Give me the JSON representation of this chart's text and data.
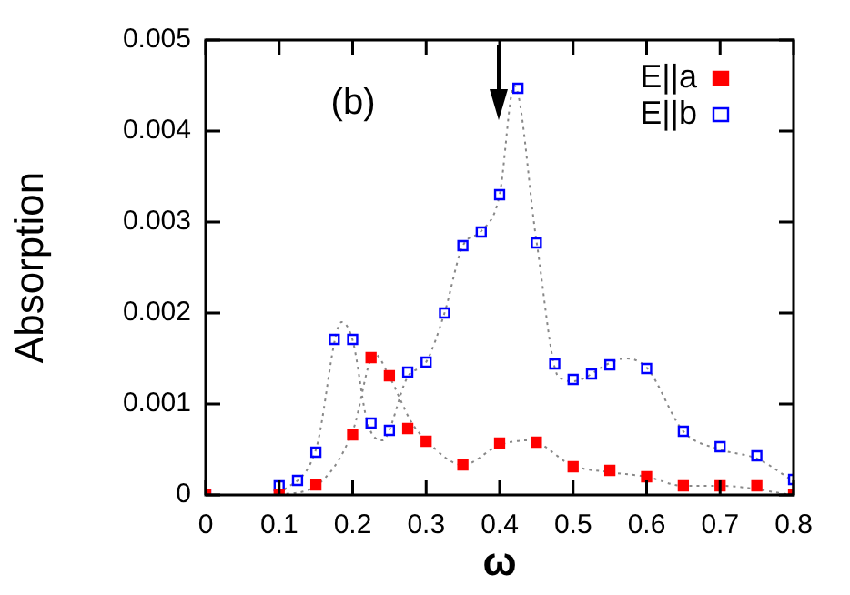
{
  "chart_data": {
    "type": "scatter",
    "xlabel": "ω",
    "ylabel": "Absorption",
    "annotations": [
      "(b)"
    ],
    "xlim": [
      0,
      0.8
    ],
    "xticks": [
      0,
      0.1,
      0.2,
      0.3,
      0.4,
      0.5,
      0.6,
      0.7,
      0.8
    ],
    "ylim": [
      0,
      0.005
    ],
    "yticks": [
      0,
      0.001,
      0.002,
      0.003,
      0.004,
      0.005
    ],
    "grid": false,
    "legend": "top right",
    "marker": "square",
    "series": [
      {
        "name": "E||a",
        "color": "#ff0000",
        "x": [
          0,
          0.1,
          0.15,
          0.2,
          0.225,
          0.25,
          0.275,
          0.3,
          0.35,
          0.4,
          0.45,
          0.5,
          0.55,
          0.6,
          0.65,
          0.7,
          0.75,
          0.8
        ],
        "values": [
          0,
          0,
          0.00011,
          0.00066,
          0.00151,
          0.00131,
          0.00073,
          0.00059,
          0.00033,
          0.00057,
          0.00058,
          0.00031,
          0.00027,
          0.0002,
          0.0001,
          0.0001,
          0.0001,
          0
        ]
      },
      {
        "name": "E||b",
        "color": "#0000ff",
        "x": [
          0,
          0.1,
          0.125,
          0.15,
          0.175,
          0.2,
          0.225,
          0.25,
          0.275,
          0.3,
          0.325,
          0.35,
          0.375,
          0.4,
          0.425,
          0.45,
          0.475,
          0.5,
          0.525,
          0.55,
          0.6,
          0.65,
          0.7,
          0.75,
          0.8
        ],
        "values": [
          0,
          0.0001,
          0.00016,
          0.00047,
          0.00171,
          0.00171,
          0.00079,
          0.00071,
          0.00135,
          0.00146,
          0.002,
          0.00274,
          0.00289,
          0.0033,
          0.00447,
          0.00277,
          0.00144,
          0.00127,
          0.00133,
          0.00143,
          0.00139,
          0.0007,
          0.00053,
          0.00043,
          0.00017
        ]
      },
      {
        "type": "line",
        "color": "#888888",
        "line_style": "dotted",
        "marker": "none",
        "x": [
          0.1,
          0.15,
          0.2,
          0.23,
          0.25,
          0.28,
          0.3,
          0.35,
          0.4,
          0.44,
          0.5,
          0.55,
          0.6,
          0.65,
          0.7,
          0.8
        ],
        "values": [
          0,
          0.0001,
          0.0007,
          0.00155,
          0.0013,
          0.0008,
          0.0006,
          0.00033,
          0.00055,
          0.0006,
          0.00032,
          0.00025,
          0.0002,
          0.0001,
          0.0001,
          0
        ]
      },
      {
        "type": "line",
        "color": "#888888",
        "line_style": "dotted",
        "marker": "none",
        "x": [
          0.1,
          0.15,
          0.185,
          0.2,
          0.22,
          0.24,
          0.275,
          0.3,
          0.325,
          0.35,
          0.375,
          0.4,
          0.42,
          0.45,
          0.48,
          0.5,
          0.55,
          0.57,
          0.6,
          0.65,
          0.7,
          0.75,
          0.8
        ],
        "values": [
          0,
          0.0005,
          0.0019,
          0.0017,
          0.0008,
          0.0006,
          0.0013,
          0.00146,
          0.002,
          0.00274,
          0.0029,
          0.0033,
          0.0045,
          0.0028,
          0.0013,
          0.00125,
          0.00145,
          0.0015,
          0.0014,
          0.0007,
          0.0005,
          0.0004,
          0.00015
        ]
      }
    ]
  }
}
